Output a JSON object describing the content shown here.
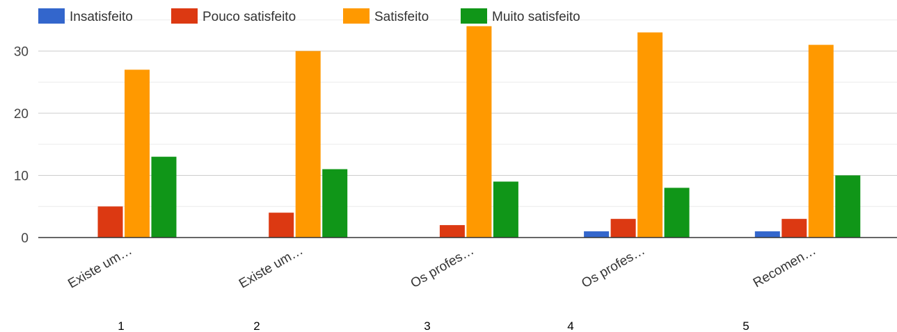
{
  "chart_data": {
    "type": "bar",
    "title": "",
    "xlabel": "",
    "ylabel": "",
    "ylim": [
      0,
      35
    ],
    "yticks": [
      0,
      10,
      20,
      30
    ],
    "grid": true,
    "legend_position": "top-left",
    "categories": [
      "Existe um…",
      "Existe um…",
      "Os profes…",
      "Os profes…",
      "Recomen…"
    ],
    "category_numbers": [
      "1",
      "2",
      "3",
      "4",
      "5"
    ],
    "series": [
      {
        "name": "Insatisfeito",
        "color": "#3366cc",
        "values": [
          0,
          0,
          0,
          1,
          1
        ]
      },
      {
        "name": "Pouco satisfeito",
        "color": "#dc3912",
        "values": [
          5,
          4,
          2,
          3,
          3
        ]
      },
      {
        "name": "Satisfeito",
        "color": "#ff9900",
        "values": [
          27,
          30,
          34,
          33,
          31
        ]
      },
      {
        "name": "Muito satisfeito",
        "color": "#109618",
        "values": [
          13,
          11,
          9,
          8,
          10
        ]
      }
    ]
  }
}
